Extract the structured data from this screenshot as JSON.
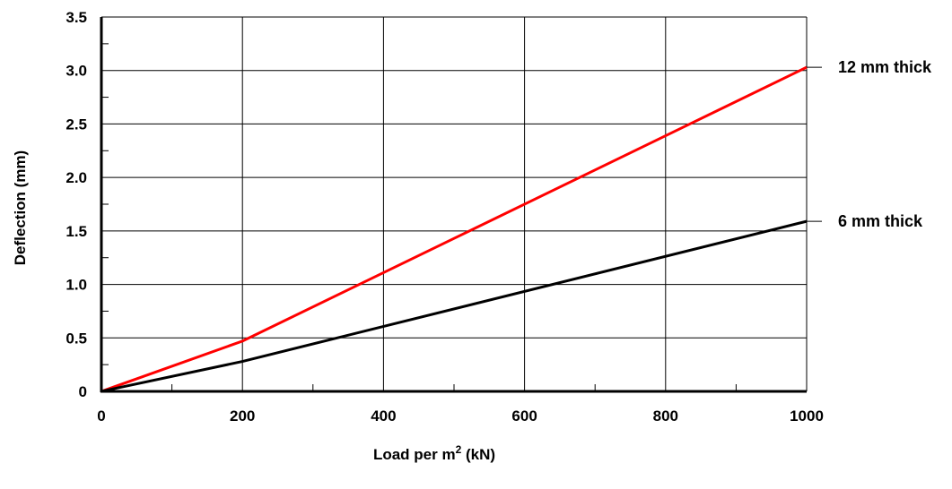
{
  "chart_data": {
    "type": "line",
    "xlabel": "Load per m",
    "xlabel_sup": "2",
    "xlabel_unit": " (kN)",
    "ylabel": "Deflection (mm)",
    "xlim": [
      0,
      1000
    ],
    "ylim": [
      0,
      3.5
    ],
    "x_ticks": [
      0,
      200,
      400,
      600,
      800,
      1000
    ],
    "x_tick_labels": [
      "0",
      "200",
      "400",
      "600",
      "800",
      "1000"
    ],
    "y_ticks": [
      0,
      0.5,
      1.0,
      1.5,
      2.0,
      2.5,
      3.0,
      3.5
    ],
    "y_tick_labels": [
      "0",
      "0.5",
      "1.0",
      "1.5",
      "2.0",
      "2.5",
      "3.0",
      "3.5"
    ],
    "grid": true,
    "legend": "series labels at right end of lines",
    "series": [
      {
        "name": "12 mm thick",
        "color": "#ff0000",
        "x": [
          0,
          200,
          1000
        ],
        "y": [
          0,
          0.47,
          3.03
        ]
      },
      {
        "name": "6 mm thick",
        "color": "#000000",
        "x": [
          0,
          200,
          1000
        ],
        "y": [
          0,
          0.28,
          1.59
        ]
      }
    ]
  }
}
